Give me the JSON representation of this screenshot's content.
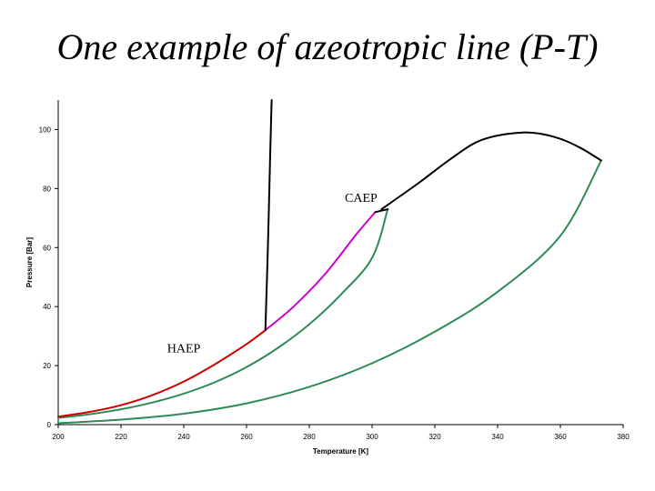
{
  "slide": {
    "title": "One example of azeotropic line (P-T)"
  },
  "chart_data": {
    "type": "line",
    "xlabel": "Temperature [K]",
    "ylabel": "Pressure [Bar]",
    "xlim": [
      200,
      380
    ],
    "ylim": [
      0,
      110
    ],
    "xticks": [
      200,
      220,
      240,
      260,
      280,
      300,
      320,
      340,
      360,
      380
    ],
    "yticks": [
      0,
      20,
      40,
      60,
      80,
      100
    ],
    "grid": false,
    "legend": "none",
    "series": [
      {
        "color": "#2e8b57",
        "points": [
          [
            200,
            2.3
          ],
          [
            210,
            3.5
          ],
          [
            220,
            5.2
          ],
          [
            230,
            7.5
          ],
          [
            240,
            10.5
          ],
          [
            250,
            14.4
          ],
          [
            260,
            19.5
          ],
          [
            270,
            26.0
          ],
          [
            280,
            34.0
          ],
          [
            290,
            44.0
          ],
          [
            300,
            56.5
          ],
          [
            305,
            73
          ]
        ]
      },
      {
        "color": "#2e8b57",
        "points": [
          [
            200,
            0.5
          ],
          [
            220,
            1.7
          ],
          [
            240,
            3.7
          ],
          [
            260,
            7.2
          ],
          [
            280,
            12.8
          ],
          [
            300,
            20.8
          ],
          [
            320,
            31.5
          ],
          [
            340,
            45.0
          ],
          [
            360,
            64.0
          ],
          [
            373,
            89.5
          ]
        ]
      },
      {
        "color": "#cc0000",
        "points": [
          [
            200,
            2.7
          ],
          [
            210,
            4.3
          ],
          [
            220,
            6.6
          ],
          [
            230,
            10.0
          ],
          [
            240,
            14.6
          ],
          [
            250,
            20.5
          ],
          [
            260,
            27.3
          ],
          [
            266,
            32
          ]
        ]
      },
      {
        "color": "#cc00cc",
        "points": [
          [
            266,
            32
          ],
          [
            275,
            40.0
          ],
          [
            285,
            51.0
          ],
          [
            295,
            64.5
          ],
          [
            301,
            72
          ]
        ]
      },
      {
        "color": "#000000",
        "points": [
          [
            266,
            32
          ],
          [
            266.8,
            60
          ],
          [
            267.5,
            90
          ],
          [
            268,
            110
          ]
        ]
      },
      {
        "color": "#000000",
        "points": [
          [
            303,
            73
          ],
          [
            315,
            82
          ],
          [
            325,
            90
          ],
          [
            335,
            96.5
          ],
          [
            348,
            99
          ],
          [
            358,
            97.5
          ],
          [
            366,
            94
          ],
          [
            373,
            89.5
          ]
        ]
      },
      {
        "color": "#000000",
        "points": [
          [
            301,
            72
          ],
          [
            305,
            73
          ]
        ]
      }
    ],
    "annotations": [
      {
        "text": "CAEP",
        "x": 296.5,
        "y": 75.5
      },
      {
        "text": "HAEP",
        "x": 240,
        "y": 24.5
      }
    ]
  }
}
